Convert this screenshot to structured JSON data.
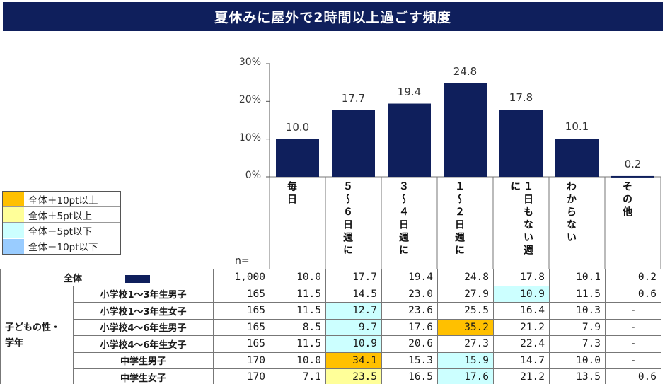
{
  "title": "夏休みに屋外で2時間以上過ごす頻度",
  "colors": {
    "bar": "#0f1f5c",
    "plus10": "#ffc000",
    "plus5": "#ffff99",
    "minus5": "#ccffff",
    "minus10": "#99ccff"
  },
  "legend": [
    {
      "label": "全体＋10pt以上",
      "key": "plus10"
    },
    {
      "label": "全体＋5pt以上",
      "key": "plus5"
    },
    {
      "label": "全体－5pt以下",
      "key": "minus5"
    },
    {
      "label": "全体－10pt以下",
      "key": "minus10"
    }
  ],
  "n_label": "n=",
  "chart_data": {
    "type": "bar",
    "categories": [
      "毎日",
      "週に5～6日",
      "週に3～4日",
      "週に1～2日",
      "週に1日もない",
      "わからない",
      "その他"
    ],
    "column_headers": [
      "毎日",
      "５〜６日週に",
      "３〜４日週に",
      "１〜２日週に",
      "１日もない週に",
      "わからない",
      "その他"
    ],
    "values": [
      10.0,
      17.7,
      19.4,
      24.8,
      17.8,
      10.1,
      0.2
    ],
    "value_labels": [
      "10.0",
      "17.7",
      "19.4",
      "24.8",
      "17.8",
      "10.1",
      "0.2"
    ],
    "ylim": [
      0,
      30
    ],
    "yticks": [
      "0%",
      "10%",
      "20%",
      "30%"
    ],
    "ytick_values": [
      0,
      10,
      20,
      30
    ]
  },
  "table": {
    "total": {
      "label": "全体",
      "n": "1,000",
      "cells": [
        "10.0",
        "17.7",
        "19.4",
        "24.8",
        "17.8",
        "10.1",
        "0.2"
      ]
    },
    "group_label": "子どもの性・学年",
    "rows": [
      {
        "label": "小学校1～3年生男子",
        "n": "165",
        "cells": [
          "11.5",
          "14.5",
          "23.0",
          "27.9",
          "10.9",
          "11.5",
          "0.6"
        ],
        "hl": [
          "",
          "",
          "",
          "",
          "minus5",
          "",
          ""
        ]
      },
      {
        "label": "小学校1～3年生女子",
        "n": "165",
        "cells": [
          "11.5",
          "12.7",
          "23.6",
          "25.5",
          "16.4",
          "10.3",
          "-"
        ],
        "hl": [
          "",
          "minus5",
          "",
          "",
          "",
          "",
          ""
        ]
      },
      {
        "label": "小学校4～6年生男子",
        "n": "165",
        "cells": [
          "8.5",
          "9.7",
          "17.6",
          "35.2",
          "21.2",
          "7.9",
          "-"
        ],
        "hl": [
          "",
          "minus5",
          "",
          "plus10",
          "",
          "",
          ""
        ]
      },
      {
        "label": "小学校4～6年生女子",
        "n": "165",
        "cells": [
          "11.5",
          "10.9",
          "20.6",
          "27.3",
          "22.4",
          "7.3",
          "-"
        ],
        "hl": [
          "",
          "minus5",
          "",
          "",
          "",
          "",
          ""
        ]
      },
      {
        "label": "中学生男子",
        "n": "170",
        "cells": [
          "10.0",
          "34.1",
          "15.3",
          "15.9",
          "14.7",
          "10.0",
          "-"
        ],
        "hl": [
          "",
          "plus10",
          "",
          "minus5",
          "",
          "",
          ""
        ]
      },
      {
        "label": "中学生女子",
        "n": "170",
        "cells": [
          "7.1",
          "23.5",
          "16.5",
          "17.6",
          "21.2",
          "13.5",
          "0.6"
        ],
        "hl": [
          "",
          "plus5",
          "",
          "minus5",
          "",
          "",
          ""
        ]
      }
    ]
  }
}
